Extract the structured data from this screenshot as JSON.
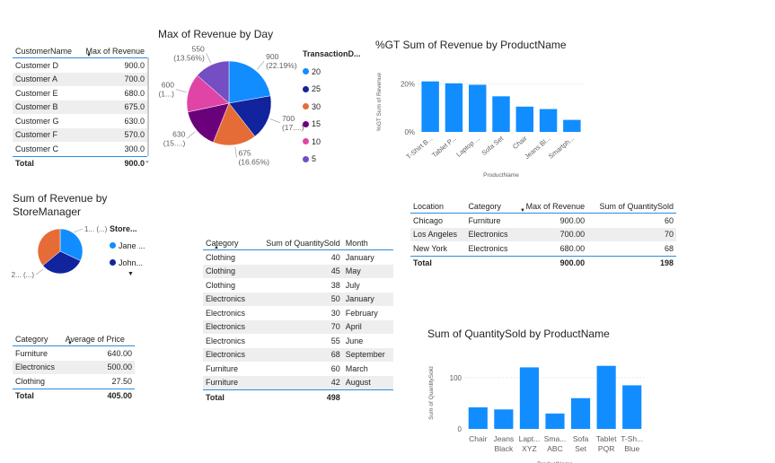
{
  "customer_table": {
    "headers": [
      "CustomerName",
      "Max of Revenue"
    ],
    "rows": [
      [
        "Customer D",
        "900.0"
      ],
      [
        "Customer A",
        "700.0"
      ],
      [
        "Customer E",
        "680.0"
      ],
      [
        "Customer B",
        "675.0"
      ],
      [
        "Customer G",
        "630.0"
      ],
      [
        "Customer F",
        "570.0"
      ],
      [
        "Customer C",
        "300.0"
      ]
    ],
    "total_label": "Total",
    "total_value": "900.0"
  },
  "pie_day": {
    "title": "Max of Revenue by Day",
    "legend_title": "TransactionD...",
    "labels": [
      "900",
      "(22.19%)",
      "700",
      "(17....)",
      "675",
      "(16.65%)",
      "630",
      "(15....)",
      "600",
      "(1...)",
      "550",
      "(13.56%)"
    ]
  },
  "store_manager": {
    "title": "Sum of Revenue by StoreManager",
    "legend_title": "Store...",
    "legend": [
      "Jane ...",
      "John..."
    ],
    "label_top": "1... (...)",
    "label_bottom": "2... (...)"
  },
  "category_price": {
    "headers": [
      "Category",
      "Average of Price"
    ],
    "rows": [
      [
        "Furniture",
        "640.00"
      ],
      [
        "Electronics",
        "500.00"
      ],
      [
        "Clothing",
        "27.50"
      ]
    ],
    "total_label": "Total",
    "total_value": "405.00"
  },
  "category_month": {
    "headers": [
      "Category",
      "Sum of QuantitySold",
      "Month"
    ],
    "rows": [
      [
        "Clothing",
        "40",
        "January"
      ],
      [
        "Clothing",
        "45",
        "May"
      ],
      [
        "Clothing",
        "38",
        "July"
      ],
      [
        "Electronics",
        "50",
        "January"
      ],
      [
        "Electronics",
        "30",
        "February"
      ],
      [
        "Electronics",
        "70",
        "April"
      ],
      [
        "Electronics",
        "55",
        "June"
      ],
      [
        "Electronics",
        "68",
        "September"
      ],
      [
        "Furniture",
        "60",
        "March"
      ],
      [
        "Furniture",
        "42",
        "August"
      ]
    ],
    "total_label": "Total",
    "total_value": "498"
  },
  "location_table": {
    "headers": [
      "Location",
      "Category",
      "Max of Revenue",
      "Sum of QuantitySold"
    ],
    "rows": [
      [
        "Chicago",
        "Furniture",
        "900.00",
        "60"
      ],
      [
        "Los Angeles",
        "Electronics",
        "700.00",
        "70"
      ],
      [
        "New York",
        "Electronics",
        "680.00",
        "68"
      ]
    ],
    "total_label": "Total",
    "total_revenue": "900.00",
    "total_qty": "198"
  },
  "chart_data": [
    {
      "type": "pie",
      "title": "Max of Revenue by Day",
      "legend_title": "TransactionD...",
      "legend_placement": "right",
      "categories": [
        "20",
        "25",
        "30",
        "15",
        "10",
        "5"
      ],
      "values": [
        900,
        700,
        675,
        630,
        600,
        550
      ],
      "colors": [
        "#118DFF",
        "#12239E",
        "#E66C37",
        "#6B007B",
        "#E044A7",
        "#744EC2"
      ]
    },
    {
      "type": "pie",
      "title": "Sum of Revenue by StoreManager",
      "legend_title": "Store...",
      "legend_placement": "right",
      "categories": [
        "Jane ...",
        "John..."
      ],
      "values": [
        2,
        1
      ],
      "colors": [
        "#118DFF",
        "#12239E",
        "#E66C37"
      ]
    },
    {
      "type": "bar",
      "title": "%GT Sum of Revenue by ProductName",
      "xlabel": "ProductName",
      "ylabel": "%GT Sum of Revenue",
      "categories": [
        "T-Shirt B...",
        "Tablet P...",
        "Laptop ...",
        "Sofa Set",
        "Chair",
        "Jeans Bl...",
        "Smartph..."
      ],
      "values": [
        21,
        20.2,
        19.6,
        14.8,
        10.5,
        9.5,
        5
      ],
      "yticks": [
        "0%",
        "20%"
      ],
      "ylim": [
        0,
        25
      ],
      "grid": true,
      "color": "#118DFF"
    },
    {
      "type": "bar",
      "title": "Sum of QuantitySold by ProductName",
      "xlabel": "ProductName",
      "ylabel": "Sum of QuantitySold",
      "categories": [
        "Chair",
        "Jeans Black",
        "Lapt... XYZ",
        "Sma... ABC",
        "Sofa Set",
        "Tablet PQR",
        "T-Sh... Blue"
      ],
      "values": [
        42,
        38,
        120,
        30,
        60,
        123,
        85
      ],
      "yticks": [
        "0",
        "100"
      ],
      "ylim": [
        0,
        140
      ],
      "grid": true,
      "color": "#118DFF"
    }
  ]
}
